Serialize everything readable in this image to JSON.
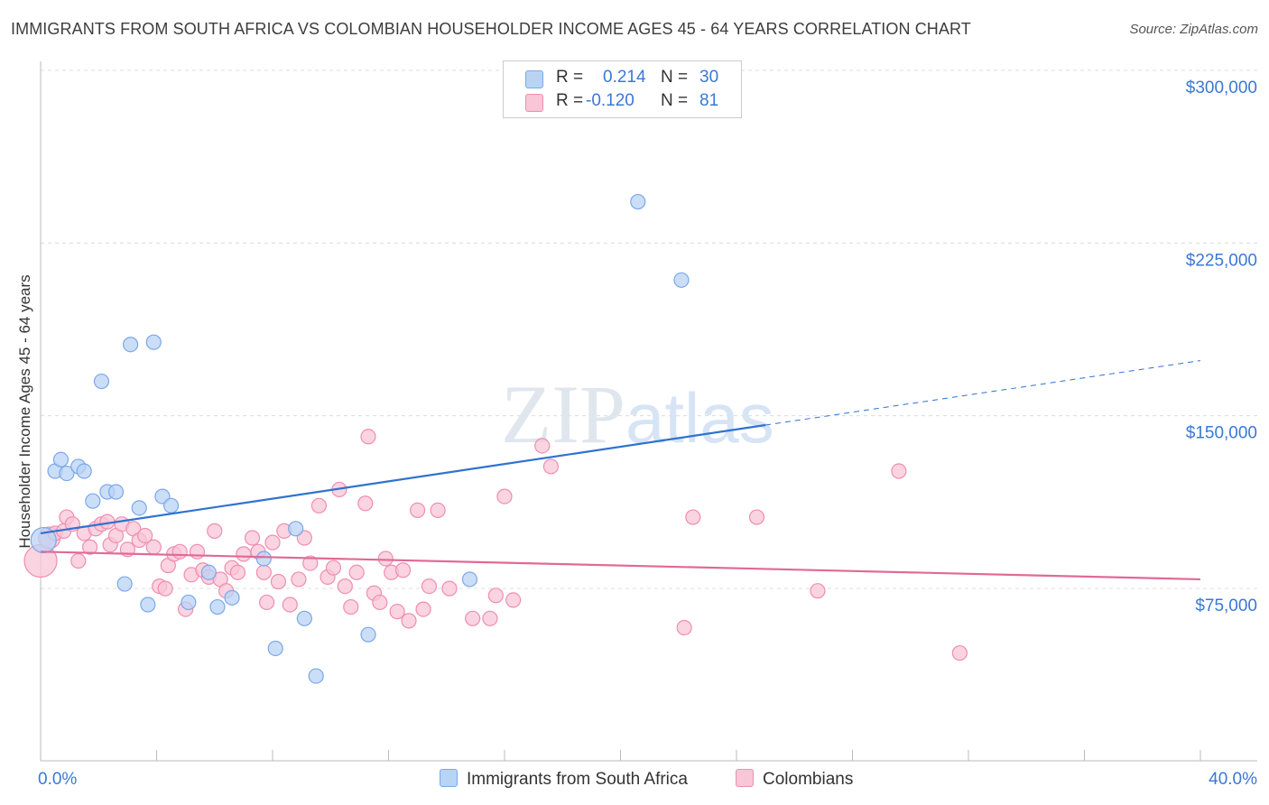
{
  "header": {
    "title": "IMMIGRANTS FROM SOUTH AFRICA VS COLOMBIAN HOUSEHOLDER INCOME AGES 45 - 64 YEARS CORRELATION CHART",
    "source": "Source: ZipAtlas.com"
  },
  "legend": {
    "rows": [
      {
        "r_label": "R =",
        "r_value": "0.214",
        "n_label": "N =",
        "n_value": "30",
        "color": "#7aa8e8"
      },
      {
        "r_label": "R =",
        "r_value": "-0.120",
        "n_label": "N =",
        "n_value": "81",
        "color": "#f08db0"
      }
    ]
  },
  "bottom_legend": {
    "series1": "Immigrants from South Africa",
    "series2": "Colombians"
  },
  "colors": {
    "blue_fill": "#b9d3f5",
    "blue_stroke": "#7aa8e8",
    "blue_line": "#2f72d0",
    "pink_fill": "#f8c6d6",
    "pink_stroke": "#f08db0",
    "pink_line": "#e06a96",
    "axis_text": "#3a78d6",
    "watermark": "#e0e6ee"
  },
  "chart_data": {
    "type": "scatter",
    "title": "IMMIGRANTS FROM SOUTH AFRICA VS COLOMBIAN HOUSEHOLDER INCOME AGES 45 - 64 YEARS CORRELATION CHART",
    "ylabel": "Householder Income Ages 45 - 64 years",
    "xlabel": "",
    "xlim": [
      0,
      40
    ],
    "ylim": [
      0,
      310000
    ],
    "x_tick_labels": [
      "0.0%",
      "40.0%"
    ],
    "y_ticks": [
      75000,
      150000,
      225000,
      300000
    ],
    "y_tick_labels": [
      "$75,000",
      "$150,000",
      "$225,000",
      "$300,000"
    ],
    "grid": true,
    "legend_position": "top-center",
    "watermark": "ZIPatlas",
    "series": [
      {
        "name": "Immigrants from South Africa",
        "R": 0.214,
        "N": 30,
        "trend": {
          "x0": 0,
          "y0": 106000,
          "x1": 25,
          "y1": 153000,
          "dashed_to_x": 40,
          "dashed_to_y": 181000
        },
        "points": [
          [
            0.1,
            103000,
            14
          ],
          [
            0.5,
            133000,
            8
          ],
          [
            0.7,
            138000,
            8
          ],
          [
            0.9,
            132000,
            8
          ],
          [
            1.3,
            135000,
            8
          ],
          [
            1.5,
            133000,
            8
          ],
          [
            1.8,
            120000,
            8
          ],
          [
            2.1,
            172000,
            8
          ],
          [
            2.3,
            124000,
            8
          ],
          [
            2.6,
            124000,
            8
          ],
          [
            2.9,
            84000,
            8
          ],
          [
            3.1,
            188000,
            8
          ],
          [
            3.4,
            117000,
            8
          ],
          [
            3.7,
            75000,
            8
          ],
          [
            3.9,
            189000,
            8
          ],
          [
            4.2,
            122000,
            8
          ],
          [
            4.5,
            118000,
            8
          ],
          [
            5.1,
            76000,
            8
          ],
          [
            5.8,
            89000,
            8
          ],
          [
            6.1,
            74000,
            8
          ],
          [
            6.6,
            78000,
            8
          ],
          [
            7.7,
            95000,
            8
          ],
          [
            8.1,
            56000,
            8
          ],
          [
            8.8,
            108000,
            8
          ],
          [
            9.1,
            69000,
            8
          ],
          [
            9.5,
            44000,
            8
          ],
          [
            11.3,
            62000,
            8
          ],
          [
            14.8,
            86000,
            8
          ],
          [
            20.6,
            250000,
            8
          ],
          [
            22.1,
            216000,
            8
          ]
        ]
      },
      {
        "name": "Colombians",
        "R": -0.12,
        "N": 81,
        "trend": {
          "x0": 0,
          "y0": 98000,
          "x1": 40,
          "y1": 86000
        },
        "points": [
          [
            0.0,
            94000,
            18
          ],
          [
            0.3,
            104000,
            12
          ],
          [
            0.5,
            106000,
            8
          ],
          [
            0.8,
            107000,
            8
          ],
          [
            0.9,
            113000,
            8
          ],
          [
            1.1,
            110000,
            8
          ],
          [
            1.3,
            94000,
            8
          ],
          [
            1.5,
            106000,
            8
          ],
          [
            1.7,
            100000,
            8
          ],
          [
            1.9,
            108000,
            8
          ],
          [
            2.1,
            110000,
            8
          ],
          [
            2.3,
            111000,
            8
          ],
          [
            2.4,
            101000,
            8
          ],
          [
            2.6,
            105000,
            8
          ],
          [
            2.8,
            110000,
            8
          ],
          [
            3.0,
            99000,
            8
          ],
          [
            3.2,
            108000,
            8
          ],
          [
            3.4,
            103000,
            8
          ],
          [
            3.6,
            105000,
            8
          ],
          [
            3.9,
            100000,
            8
          ],
          [
            4.1,
            83000,
            8
          ],
          [
            4.3,
            82000,
            8
          ],
          [
            4.4,
            92000,
            8
          ],
          [
            4.6,
            97000,
            8
          ],
          [
            4.8,
            98000,
            8
          ],
          [
            5.0,
            73000,
            8
          ],
          [
            5.2,
            88000,
            8
          ],
          [
            5.4,
            98000,
            8
          ],
          [
            5.6,
            90000,
            8
          ],
          [
            5.8,
            87000,
            8
          ],
          [
            6.0,
            107000,
            8
          ],
          [
            6.2,
            86000,
            8
          ],
          [
            6.4,
            81000,
            8
          ],
          [
            6.6,
            91000,
            8
          ],
          [
            6.8,
            89000,
            8
          ],
          [
            7.0,
            97000,
            8
          ],
          [
            7.3,
            104000,
            8
          ],
          [
            7.5,
            98000,
            8
          ],
          [
            7.7,
            89000,
            8
          ],
          [
            7.8,
            76000,
            8
          ],
          [
            8.0,
            102000,
            8
          ],
          [
            8.2,
            85000,
            8
          ],
          [
            8.4,
            107000,
            8
          ],
          [
            8.6,
            75000,
            8
          ],
          [
            8.9,
            86000,
            8
          ],
          [
            9.1,
            104000,
            8
          ],
          [
            9.3,
            93000,
            8
          ],
          [
            9.6,
            118000,
            8
          ],
          [
            9.9,
            87000,
            8
          ],
          [
            10.1,
            91000,
            8
          ],
          [
            10.3,
            125000,
            8
          ],
          [
            10.5,
            83000,
            8
          ],
          [
            10.7,
            74000,
            8
          ],
          [
            10.9,
            89000,
            8
          ],
          [
            11.2,
            119000,
            8
          ],
          [
            11.3,
            148000,
            8
          ],
          [
            11.5,
            80000,
            8
          ],
          [
            11.7,
            76000,
            8
          ],
          [
            11.9,
            95000,
            8
          ],
          [
            12.1,
            89000,
            8
          ],
          [
            12.3,
            72000,
            8
          ],
          [
            12.5,
            90000,
            8
          ],
          [
            12.7,
            68000,
            8
          ],
          [
            13.0,
            116000,
            8
          ],
          [
            13.2,
            73000,
            8
          ],
          [
            13.4,
            83000,
            8
          ],
          [
            13.7,
            116000,
            8
          ],
          [
            14.1,
            82000,
            8
          ],
          [
            14.9,
            69000,
            8
          ],
          [
            15.5,
            69000,
            8
          ],
          [
            15.7,
            79000,
            8
          ],
          [
            16.0,
            122000,
            8
          ],
          [
            16.3,
            77000,
            8
          ],
          [
            17.3,
            144000,
            8
          ],
          [
            17.6,
            135000,
            8
          ],
          [
            22.2,
            65000,
            8
          ],
          [
            22.5,
            113000,
            8
          ],
          [
            24.7,
            113000,
            8
          ],
          [
            26.8,
            81000,
            8
          ],
          [
            29.6,
            133000,
            8
          ],
          [
            31.7,
            54000,
            8
          ]
        ]
      }
    ]
  }
}
